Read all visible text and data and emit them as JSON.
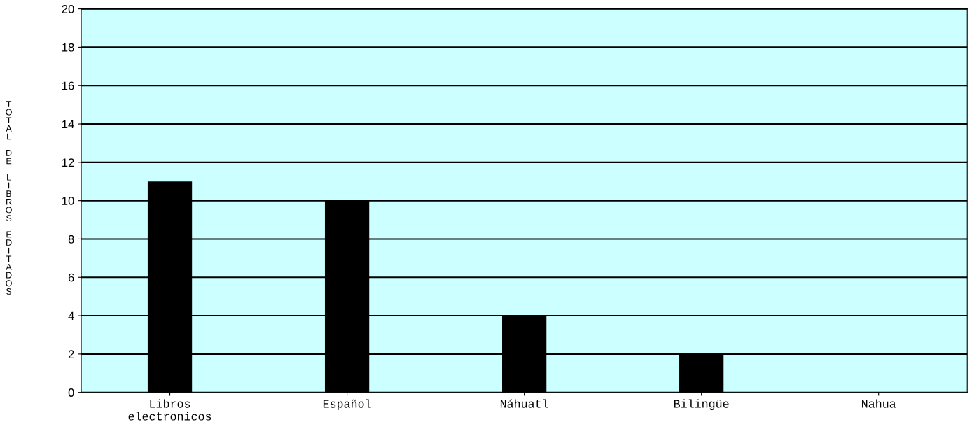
{
  "chart_data": {
    "type": "bar",
    "ylabel": "TOTAL DE LIBROS EDITADOS",
    "categories": [
      "Libros\nelectronicos",
      "Español",
      "Náhuatl",
      "Bilingüe",
      "Nahua"
    ],
    "values": [
      11,
      10,
      4,
      2,
      0
    ],
    "color": "#000000",
    "ylim": [
      0,
      20
    ],
    "yticks": [
      0,
      2,
      4,
      6,
      8,
      10,
      12,
      14,
      16,
      18,
      20
    ],
    "grid": "y"
  }
}
